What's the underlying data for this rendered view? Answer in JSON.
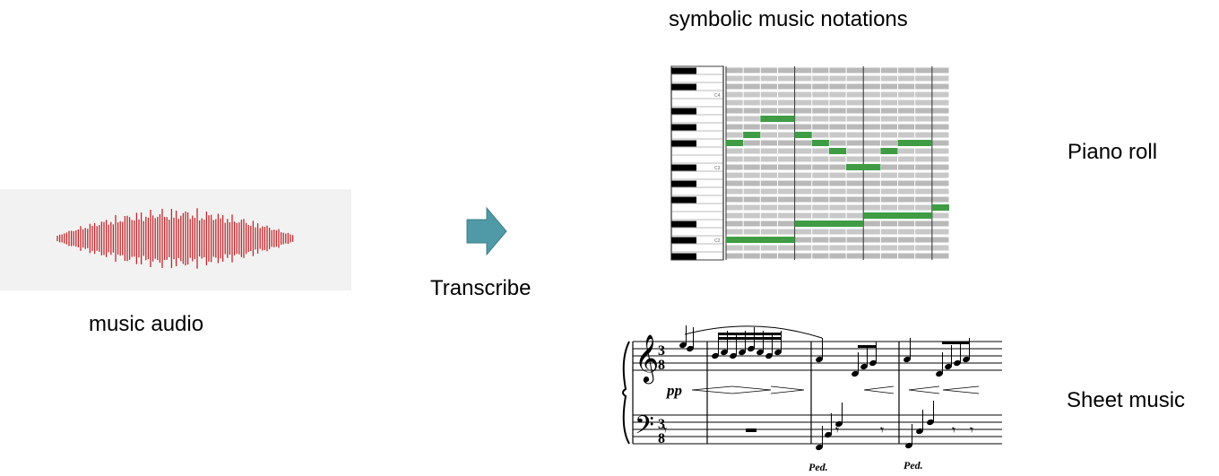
{
  "title": "symbolic music notations",
  "labels": {
    "audio": "music audio",
    "transcribe": "Transcribe",
    "piano_roll": "Piano roll",
    "sheet_music": "Sheet music"
  },
  "colors": {
    "waveform": "#c0282d",
    "arrow": "#4f9aa6",
    "note": "#3f9c45",
    "roll_lane": "#c8c8c8"
  },
  "piano_roll": {
    "key_labels": [
      "C4",
      "C3",
      "C2"
    ]
  },
  "sheet_music": {
    "time_signature": [
      "3",
      "8"
    ],
    "dynamic": "pp",
    "pedal_mark": "Ped."
  }
}
